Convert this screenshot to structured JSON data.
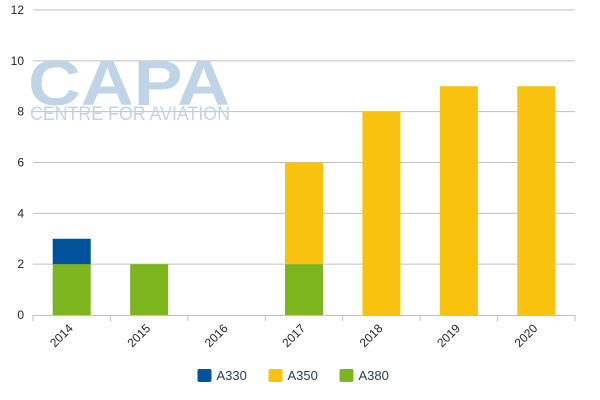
{
  "watermark": {
    "logo_text": "CAPA",
    "tagline": "CENTRE FOR AVIATION"
  },
  "chart_data": {
    "type": "bar",
    "stacked": true,
    "categories": [
      "2014",
      "2015",
      "2016",
      "2017",
      "2018",
      "2019",
      "2020"
    ],
    "series": [
      {
        "name": "A330",
        "color": "#00529b",
        "values": [
          1,
          0,
          0,
          0,
          0,
          0,
          0
        ]
      },
      {
        "name": "A350",
        "color": "#f9c20e",
        "values": [
          0,
          0,
          0,
          4,
          8,
          9,
          9
        ]
      },
      {
        "name": "A380",
        "color": "#7db51f",
        "values": [
          2,
          2,
          0,
          2,
          0,
          0,
          0
        ]
      }
    ],
    "stack_order": [
      "A380",
      "A350",
      "A330"
    ],
    "y_ticks": [
      0,
      2,
      4,
      6,
      8,
      10,
      12
    ],
    "ylim": [
      0,
      12
    ],
    "grid": true,
    "legend": "bottom-center"
  }
}
